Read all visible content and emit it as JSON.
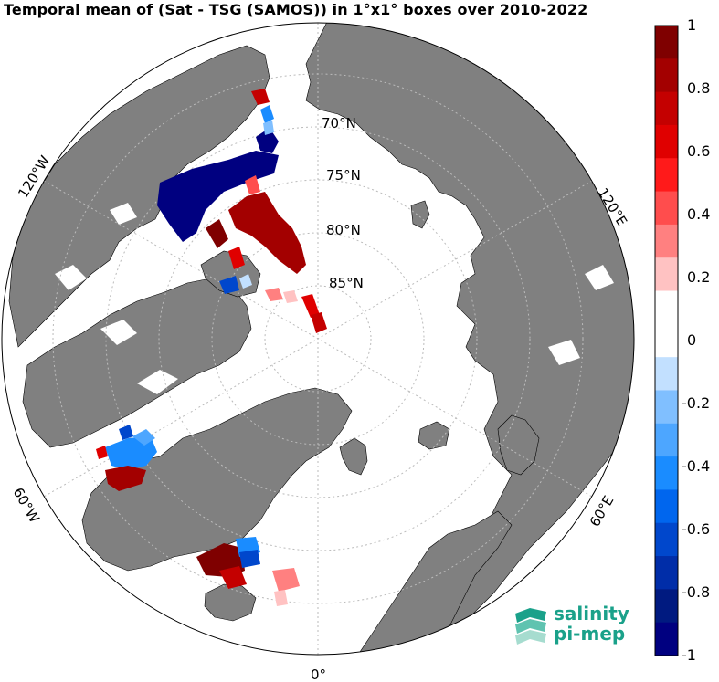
{
  "title": "Temporal mean of (Sat - TSG (SAMOS)) in 1°x1° boxes over 2010-2022",
  "map": {
    "projection": "north-polar-stereographic",
    "land_color": "#808080",
    "ocean_color": "#ffffff",
    "graticule_color": "#bbbbbb",
    "lat_labels": [
      "70°N",
      "75°N",
      "80°N",
      "85°N"
    ],
    "lon_labels": [
      "120°W",
      "120°E",
      "60°W",
      "60°E",
      "0°"
    ]
  },
  "colorbar": {
    "min": -1,
    "max": 1,
    "ticks": [
      "1",
      "0.8",
      "0.6",
      "0.4",
      "0.2",
      "0",
      "-0.2",
      "-0.4",
      "-0.6",
      "-0.8",
      "-1"
    ],
    "colors": [
      "#7f0000",
      "#a30000",
      "#c40000",
      "#e00000",
      "#ff1a1a",
      "#ff4d4d",
      "#ff8080",
      "#ffc2c2",
      "#ffffff",
      "#ffffff",
      "#c2e0ff",
      "#80bfff",
      "#4da6ff",
      "#1a8cff",
      "#0066ee",
      "#0047cc",
      "#002da8",
      "#001a80",
      "#000080"
    ]
  },
  "logo": {
    "line1": "salinity",
    "line2": "pi-mep"
  }
}
